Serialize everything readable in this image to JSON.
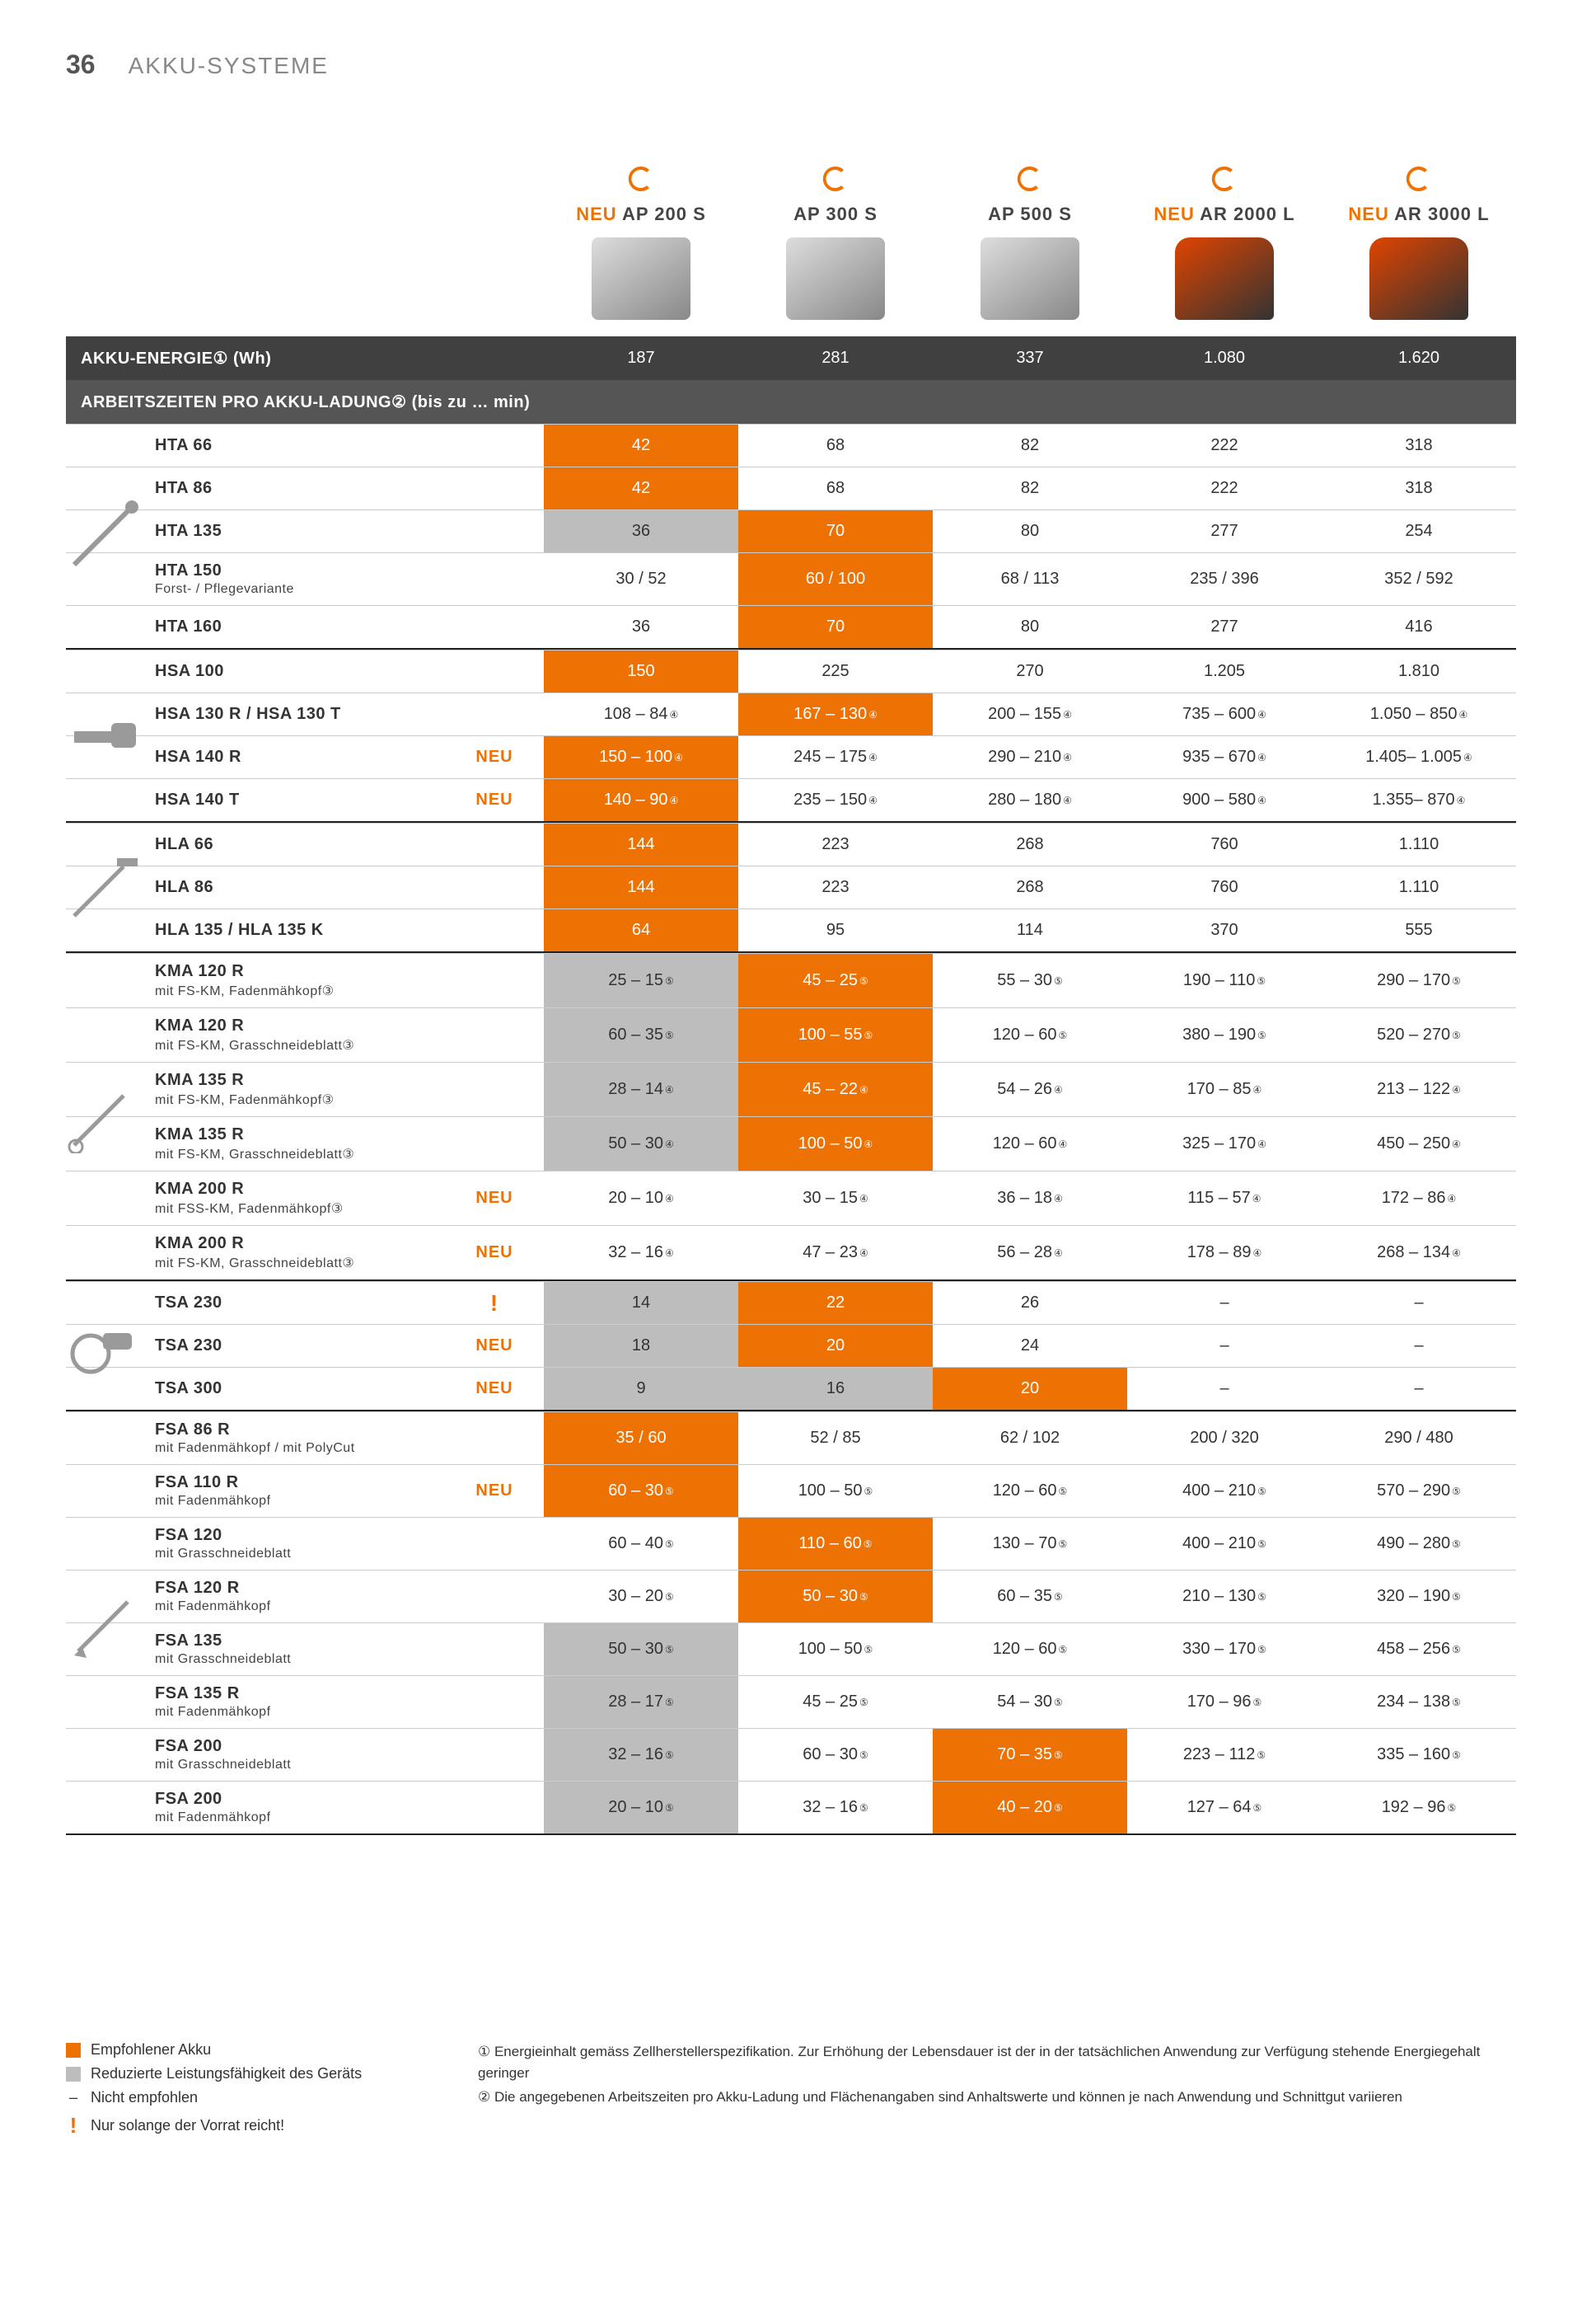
{
  "page_number": "36",
  "page_title": "AKKU-SYSTEME",
  "colors": {
    "recommended": "#ee7203",
    "reduced": "#bdbdbd",
    "header_bar": "#404040",
    "border": "#cccccc",
    "text": "#333333",
    "icon": "#ee7203"
  },
  "batteries": [
    {
      "label": "AP 200 S",
      "neu": true,
      "type": "pack"
    },
    {
      "label": "AP 300 S",
      "neu": false,
      "type": "pack"
    },
    {
      "label": "AP 500 S",
      "neu": false,
      "type": "pack"
    },
    {
      "label": "AR 2000 L",
      "neu": true,
      "type": "backpack"
    },
    {
      "label": "AR 3000 L",
      "neu": true,
      "type": "backpack"
    }
  ],
  "energy_header": "AKKU-ENERGIE① (Wh)",
  "energy_values": [
    "187",
    "281",
    "337",
    "1.080",
    "1.620"
  ],
  "runtime_header": "ARBEITSZEITEN PRO AKKU-LADUNG②  (bis zu … min)",
  "groups": [
    {
      "icon": "pole-pruner",
      "rows": [
        {
          "name": "HTA 66",
          "cells": [
            {
              "v": "42",
              "c": "rec"
            },
            {
              "v": "68"
            },
            {
              "v": "82"
            },
            {
              "v": "222"
            },
            {
              "v": "318"
            }
          ]
        },
        {
          "name": "HTA 86",
          "cells": [
            {
              "v": "42",
              "c": "rec"
            },
            {
              "v": "68"
            },
            {
              "v": "82"
            },
            {
              "v": "222"
            },
            {
              "v": "318"
            }
          ]
        },
        {
          "name": "HTA 135",
          "cells": [
            {
              "v": "36",
              "c": "red"
            },
            {
              "v": "70",
              "c": "rec"
            },
            {
              "v": "80"
            },
            {
              "v": "277"
            },
            {
              "v": "254"
            }
          ]
        },
        {
          "name": "HTA 150",
          "sub": "Forst- / Pflegevariante",
          "cells": [
            {
              "v": "30 / 52"
            },
            {
              "v": "60 / 100",
              "c": "rec"
            },
            {
              "v": "68 / 113"
            },
            {
              "v": "235 / 396"
            },
            {
              "v": "352 / 592"
            }
          ]
        },
        {
          "name": "HTA 160",
          "cells": [
            {
              "v": "36"
            },
            {
              "v": "70",
              "c": "rec"
            },
            {
              "v": "80"
            },
            {
              "v": "277"
            },
            {
              "v": "416"
            }
          ]
        }
      ]
    },
    {
      "icon": "hedge-trimmer",
      "rows": [
        {
          "name": "HSA 100",
          "cells": [
            {
              "v": "150",
              "c": "rec"
            },
            {
              "v": "225"
            },
            {
              "v": "270"
            },
            {
              "v": "1.205"
            },
            {
              "v": "1.810"
            }
          ]
        },
        {
          "name": "HSA 130 R / HSA 130 T",
          "cells": [
            {
              "v": "108 – 84",
              "s": "④"
            },
            {
              "v": "167 – 130",
              "s": "④",
              "c": "rec"
            },
            {
              "v": "200 – 155",
              "s": "④"
            },
            {
              "v": "735 – 600",
              "s": "④"
            },
            {
              "v": "1.050 – 850",
              "s": "④"
            }
          ]
        },
        {
          "name": "HSA 140 R",
          "neu": true,
          "cells": [
            {
              "v": "150 – 100",
              "s": "④",
              "c": "rec"
            },
            {
              "v": "245 – 175",
              "s": "④"
            },
            {
              "v": "290 – 210",
              "s": "④"
            },
            {
              "v": "935 – 670",
              "s": "④"
            },
            {
              "v": "1.405– 1.005",
              "s": "④"
            }
          ]
        },
        {
          "name": "HSA 140 T",
          "neu": true,
          "cells": [
            {
              "v": "140 – 90",
              "s": "④",
              "c": "rec"
            },
            {
              "v": "235 – 150",
              "s": "④"
            },
            {
              "v": "280 – 180",
              "s": "④"
            },
            {
              "v": "900 – 580",
              "s": "④"
            },
            {
              "v": "1.355– 870",
              "s": "④"
            }
          ]
        }
      ]
    },
    {
      "icon": "long-hedge",
      "rows": [
        {
          "name": "HLA 66",
          "cells": [
            {
              "v": "144",
              "c": "rec"
            },
            {
              "v": "223"
            },
            {
              "v": "268"
            },
            {
              "v": "760"
            },
            {
              "v": "1.110"
            }
          ]
        },
        {
          "name": "HLA 86",
          "cells": [
            {
              "v": "144",
              "c": "rec"
            },
            {
              "v": "223"
            },
            {
              "v": "268"
            },
            {
              "v": "760"
            },
            {
              "v": "1.110"
            }
          ]
        },
        {
          "name": "HLA 135 / HLA 135 K",
          "cells": [
            {
              "v": "64",
              "c": "rec"
            },
            {
              "v": "95"
            },
            {
              "v": "114"
            },
            {
              "v": "370"
            },
            {
              "v": "555"
            }
          ]
        }
      ]
    },
    {
      "icon": "kombi",
      "rows": [
        {
          "name": "KMA 120 R",
          "sub": "mit FS-KM, Fadenmähkopf③",
          "cells": [
            {
              "v": "25 – 15",
              "s": "⑤",
              "c": "red"
            },
            {
              "v": "45 – 25",
              "s": "⑤",
              "c": "rec"
            },
            {
              "v": "55 – 30",
              "s": "⑤"
            },
            {
              "v": "190 – 110",
              "s": "⑤"
            },
            {
              "v": "290 – 170",
              "s": "⑤"
            }
          ]
        },
        {
          "name": "KMA 120 R",
          "sub": "mit FS-KM, Grasschneideblatt③",
          "cells": [
            {
              "v": "60 – 35",
              "s": "⑤",
              "c": "red"
            },
            {
              "v": "100 – 55",
              "s": "⑤",
              "c": "rec"
            },
            {
              "v": "120 – 60",
              "s": "⑤"
            },
            {
              "v": "380 – 190",
              "s": "⑤"
            },
            {
              "v": "520 – 270",
              "s": "⑤"
            }
          ]
        },
        {
          "name": "KMA 135 R",
          "sub": "mit FS-KM, Fadenmähkopf③",
          "cells": [
            {
              "v": "28 – 14",
              "s": "④",
              "c": "red"
            },
            {
              "v": "45 – 22",
              "s": "④",
              "c": "rec"
            },
            {
              "v": "54 – 26",
              "s": "④"
            },
            {
              "v": "170 – 85",
              "s": "④"
            },
            {
              "v": "213 – 122",
              "s": "④"
            }
          ]
        },
        {
          "name": "KMA 135 R",
          "sub": "mit FS-KM, Grasschneideblatt③",
          "cells": [
            {
              "v": "50 – 30",
              "s": "④",
              "c": "red"
            },
            {
              "v": "100 – 50",
              "s": "④",
              "c": "rec"
            },
            {
              "v": "120 – 60",
              "s": "④"
            },
            {
              "v": "325 – 170",
              "s": "④"
            },
            {
              "v": "450 – 250",
              "s": "④"
            }
          ]
        },
        {
          "name": "KMA 200 R",
          "sub": "mit FSS-KM, Fadenmähkopf③",
          "neu": true,
          "cells": [
            {
              "v": "20 – 10",
              "s": "④"
            },
            {
              "v": "30 – 15",
              "s": "④"
            },
            {
              "v": "36 – 18",
              "s": "④"
            },
            {
              "v": "115 – 57",
              "s": "④"
            },
            {
              "v": "172 – 86",
              "s": "④"
            }
          ]
        },
        {
          "name": "KMA 200 R",
          "sub": "mit FS-KM, Grasschneideblatt③",
          "neu": true,
          "cells": [
            {
              "v": "32 – 16",
              "s": "④"
            },
            {
              "v": "47 – 23",
              "s": "④"
            },
            {
              "v": "56 – 28",
              "s": "④"
            },
            {
              "v": "178 – 89",
              "s": "④"
            },
            {
              "v": "268 – 134",
              "s": "④"
            }
          ]
        }
      ]
    },
    {
      "icon": "cutoff",
      "rows": [
        {
          "name": "TSA 230",
          "excl": true,
          "cells": [
            {
              "v": "14",
              "c": "red"
            },
            {
              "v": "22",
              "c": "rec"
            },
            {
              "v": "26"
            },
            {
              "v": "–"
            },
            {
              "v": "–"
            }
          ]
        },
        {
          "name": "TSA 230",
          "neu": true,
          "cells": [
            {
              "v": "18",
              "c": "red"
            },
            {
              "v": "20",
              "c": "rec"
            },
            {
              "v": "24"
            },
            {
              "v": "–"
            },
            {
              "v": "–"
            }
          ]
        },
        {
          "name": "TSA 300",
          "neu": true,
          "cells": [
            {
              "v": "9",
              "c": "red"
            },
            {
              "v": "16",
              "c": "red"
            },
            {
              "v": "20",
              "c": "rec"
            },
            {
              "v": "–"
            },
            {
              "v": "–"
            }
          ]
        }
      ]
    },
    {
      "icon": "brushcutter",
      "rows": [
        {
          "name": "FSA 86 R",
          "sub": "mit Fadenmähkopf / mit PolyCut",
          "cells": [
            {
              "v": "35 / 60",
              "c": "rec"
            },
            {
              "v": "52 / 85"
            },
            {
              "v": "62 / 102"
            },
            {
              "v": "200 / 320"
            },
            {
              "v": "290 / 480"
            }
          ]
        },
        {
          "name": "FSA 110 R",
          "sub": "mit Fadenmähkopf",
          "neu": true,
          "cells": [
            {
              "v": "60 – 30",
              "s": "⑤",
              "c": "rec"
            },
            {
              "v": "100 – 50",
              "s": "⑤"
            },
            {
              "v": "120 – 60",
              "s": "⑤"
            },
            {
              "v": "400 – 210",
              "s": "⑤"
            },
            {
              "v": "570 – 290",
              "s": "⑤"
            }
          ]
        },
        {
          "name": "FSA 120",
          "sub": "mit Grasschneideblatt",
          "cells": [
            {
              "v": "60 – 40",
              "s": "⑤"
            },
            {
              "v": "110 – 60",
              "s": "⑤",
              "c": "rec"
            },
            {
              "v": "130 – 70",
              "s": "⑤"
            },
            {
              "v": "400 – 210",
              "s": "⑤"
            },
            {
              "v": "490 – 280",
              "s": "⑤"
            }
          ]
        },
        {
          "name": "FSA 120 R",
          "sub": "mit Fadenmähkopf",
          "cells": [
            {
              "v": "30 – 20",
              "s": "⑤"
            },
            {
              "v": "50 – 30",
              "s": "⑤",
              "c": "rec"
            },
            {
              "v": "60 – 35",
              "s": "⑤"
            },
            {
              "v": "210 – 130",
              "s": "⑤"
            },
            {
              "v": "320 – 190",
              "s": "⑤"
            }
          ]
        },
        {
          "name": "FSA 135",
          "sub": "mit Grasschneideblatt",
          "cells": [
            {
              "v": "50 – 30",
              "s": "⑤",
              "c": "red"
            },
            {
              "v": "100 – 50",
              "s": "⑤"
            },
            {
              "v": "120 – 60",
              "s": "⑤"
            },
            {
              "v": "330 – 170",
              "s": "⑤"
            },
            {
              "v": "458 – 256",
              "s": "⑤"
            }
          ]
        },
        {
          "name": "FSA 135 R",
          "sub": "mit Fadenmähkopf",
          "cells": [
            {
              "v": "28 – 17",
              "s": "⑤",
              "c": "red"
            },
            {
              "v": "45 – 25",
              "s": "⑤"
            },
            {
              "v": "54 – 30",
              "s": "⑤"
            },
            {
              "v": "170 – 96",
              "s": "⑤"
            },
            {
              "v": "234 – 138",
              "s": "⑤"
            }
          ]
        },
        {
          "name": "FSA 200",
          "sub": "mit Grasschneideblatt",
          "cells": [
            {
              "v": "32 – 16",
              "s": "⑤",
              "c": "red"
            },
            {
              "v": "60 – 30",
              "s": "⑤"
            },
            {
              "v": "70 – 35",
              "s": "⑤",
              "c": "rec"
            },
            {
              "v": "223 – 112",
              "s": "⑤"
            },
            {
              "v": "335 – 160",
              "s": "⑤"
            }
          ]
        },
        {
          "name": "FSA 200",
          "sub": "mit Fadenmähkopf",
          "cells": [
            {
              "v": "20 – 10",
              "s": "⑤",
              "c": "red"
            },
            {
              "v": "32 – 16",
              "s": "⑤"
            },
            {
              "v": "40 – 20",
              "s": "⑤",
              "c": "rec"
            },
            {
              "v": "127 – 64",
              "s": "⑤"
            },
            {
              "v": "192 – 96",
              "s": "⑤"
            }
          ]
        }
      ]
    }
  ],
  "legend": [
    {
      "type": "sq-orange",
      "text": "Empfohlener Akku"
    },
    {
      "type": "sq-gray",
      "text": "Reduzierte Leistungsfähigkeit des Geräts"
    },
    {
      "type": "dash",
      "text": "Nicht empfohlen"
    },
    {
      "type": "excl",
      "text": "Nur solange der Vorrat reicht!"
    }
  ],
  "footnotes": [
    "① Energieinhalt gemäss Zellherstellerspezifikation. Zur Erhöhung der Lebensdauer ist der in der tatsächlichen Anwendung zur Verfügung stehende Energiegehalt geringer",
    "② Die angegebenen Arbeitszeiten pro Akku-Ladung und Flächenangaben sind Anhaltswerte und können je nach Anwendung und Schnittgut variieren"
  ],
  "neu_label": "NEU"
}
